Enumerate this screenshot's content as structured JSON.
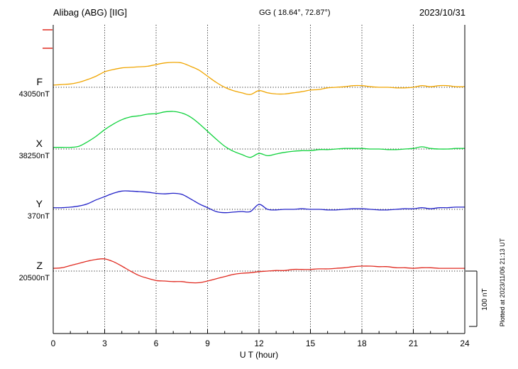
{
  "header": {
    "station": "Alibag (ABG)  [IIG]",
    "coords": "GG ( 18.64°,  72.87°)",
    "date": "2023/10/31"
  },
  "axis": {
    "xlabel": "U T (hour)",
    "ticks": [
      0,
      3,
      6,
      9,
      12,
      15,
      18,
      21,
      24
    ]
  },
  "scalebar": {
    "label": "100 nT",
    "value_nT": 100
  },
  "footer": {
    "plotted_at": "Plotted at 2023/11/06 21:13 UT"
  },
  "chart_data": {
    "type": "line",
    "title": "Alibag (ABG) [IIG] magnetogram variations, 2023/10/31",
    "xlabel": "U T (hour)",
    "xlim": [
      0,
      24
    ],
    "grid": "dotted vertical lines every 3 h; dotted horizontal baseline per component",
    "scale_nT_per_div": 100,
    "x_hours": [
      0,
      0.5,
      1,
      1.5,
      2,
      2.5,
      3,
      3.5,
      4,
      4.5,
      5,
      5.5,
      6,
      6.5,
      7,
      7.5,
      8,
      8.5,
      9,
      9.5,
      10,
      10.5,
      11,
      11.5,
      12,
      12.5,
      13,
      13.5,
      14,
      14.5,
      15,
      15.5,
      16,
      16.5,
      17,
      17.5,
      18,
      18.5,
      19,
      19.5,
      20,
      20.5,
      21,
      21.5,
      22,
      22.5,
      23,
      23.5,
      24
    ],
    "series": [
      {
        "name": "F",
        "baseline_label": "43050nT",
        "color": "#f0a500",
        "offsets_nT": [
          4,
          5,
          6,
          9,
          14,
          20,
          28,
          32,
          35,
          36,
          37,
          38,
          41,
          44,
          45,
          44,
          38,
          31,
          20,
          9,
          0,
          -6,
          -10,
          -13,
          -6,
          -10,
          -12,
          -12,
          -10,
          -8,
          -5,
          -4,
          -1,
          0,
          1,
          3,
          3,
          1,
          0,
          0,
          -1,
          -1,
          0,
          3,
          1,
          3,
          3,
          1,
          1
        ]
      },
      {
        "name": "X",
        "baseline_label": "38250nT",
        "color": "#0fd23c",
        "offsets_nT": [
          3,
          3,
          3,
          5,
          13,
          23,
          35,
          45,
          53,
          58,
          60,
          63,
          64,
          67,
          68,
          65,
          58,
          46,
          32,
          18,
          5,
          -4,
          -10,
          -15,
          -8,
          -12,
          -9,
          -6,
          -4,
          -3,
          -3,
          -1,
          -1,
          0,
          1,
          1,
          1,
          0,
          0,
          -1,
          -1,
          0,
          1,
          4,
          1,
          0,
          0,
          1,
          1
        ]
      },
      {
        "name": "Y",
        "baseline_label": "370nT",
        "color": "#2222c8",
        "offsets_nT": [
          3,
          3,
          4,
          6,
          10,
          17,
          23,
          29,
          33,
          33,
          32,
          31,
          29,
          28,
          29,
          27,
          19,
          10,
          3,
          -4,
          -6,
          -5,
          -4,
          -4,
          9,
          0,
          -1,
          0,
          0,
          1,
          0,
          0,
          -1,
          -1,
          0,
          1,
          1,
          0,
          -1,
          -1,
          0,
          1,
          1,
          3,
          1,
          3,
          3,
          4,
          4
        ]
      },
      {
        "name": "Z",
        "baseline_label": "20500nT",
        "color": "#e02a20",
        "offsets_nT": [
          5,
          6,
          10,
          14,
          18,
          21,
          22,
          17,
          9,
          0,
          -8,
          -13,
          -17,
          -18,
          -19,
          -19,
          -21,
          -21,
          -18,
          -14,
          -10,
          -6,
          -4,
          -3,
          -1,
          0,
          1,
          1,
          3,
          3,
          3,
          4,
          4,
          5,
          6,
          8,
          9,
          9,
          8,
          8,
          6,
          6,
          5,
          6,
          6,
          5,
          5,
          5,
          5
        ]
      }
    ]
  }
}
